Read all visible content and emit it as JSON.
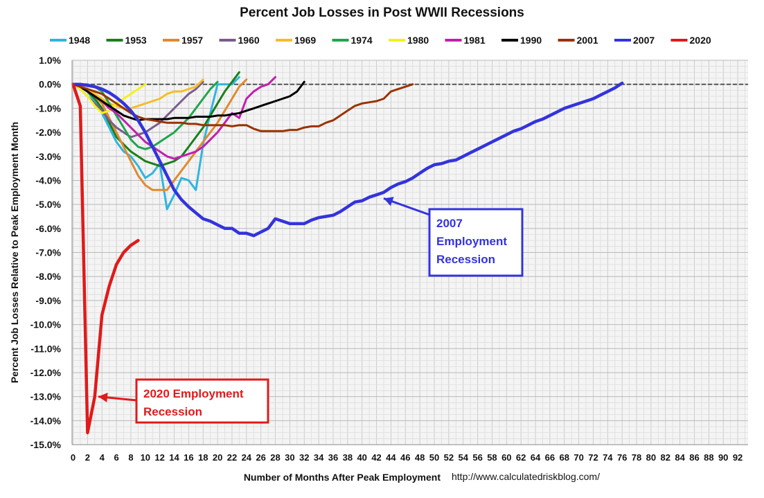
{
  "chart_data": {
    "type": "line",
    "title": "Percent Job Losses in Post WWII Recessions",
    "xlabel": "Number of Months After Peak Employment",
    "ylabel": "Percent Job Losses Relative to Peak Employment Month",
    "source": "http://www.calculatedriskblog.com/",
    "xlim": [
      0,
      93
    ],
    "ylim": [
      -15,
      1
    ],
    "x_ticks": [
      0,
      2,
      4,
      6,
      8,
      10,
      12,
      14,
      16,
      18,
      20,
      22,
      24,
      26,
      28,
      30,
      32,
      34,
      36,
      38,
      40,
      42,
      44,
      46,
      48,
      50,
      52,
      54,
      56,
      58,
      60,
      62,
      64,
      66,
      68,
      70,
      72,
      74,
      76,
      78,
      80,
      82,
      84,
      86,
      88,
      90,
      92
    ],
    "y_ticks": [
      1,
      0,
      -1,
      -2,
      -3,
      -4,
      -5,
      -6,
      -7,
      -8,
      -9,
      -10,
      -11,
      -12,
      -13,
      -14,
      -15
    ],
    "y_tick_labels": [
      "1.0%",
      "0.0%",
      "-1.0%",
      "-2.0%",
      "-3.0%",
      "-4.0%",
      "-5.0%",
      "-6.0%",
      "-7.0%",
      "-8.0%",
      "-9.0%",
      "-10.0%",
      "-11.0%",
      "-12.0%",
      "-13.0%",
      "-14.0%",
      "-15.0%"
    ],
    "grid": true,
    "legend_position": "top",
    "series": [
      {
        "name": "1948",
        "color": "#2EB5E0",
        "width": 3,
        "y": [
          0,
          -0.1,
          -0.3,
          -0.7,
          -1.2,
          -1.8,
          -2.4,
          -2.8,
          -3.0,
          -3.4,
          -3.9,
          -3.7,
          -3.3,
          -5.2,
          -4.6,
          -3.9,
          -4.0,
          -4.4,
          -2.5,
          -1.2,
          0.0,
          0.0,
          0.0,
          0.3
        ]
      },
      {
        "name": "1953",
        "color": "#1A7F1A",
        "width": 3,
        "y": [
          0,
          -0.1,
          -0.3,
          -0.6,
          -1.0,
          -1.6,
          -2.2,
          -2.5,
          -2.8,
          -3.0,
          -3.2,
          -3.3,
          -3.4,
          -3.3,
          -3.2,
          -3.0,
          -2.6,
          -2.2,
          -1.8,
          -1.3,
          -0.8,
          -0.3,
          0.1,
          0.5
        ]
      },
      {
        "name": "1957",
        "color": "#E08A2E",
        "width": 3,
        "y": [
          0,
          -0.1,
          -0.3,
          -0.5,
          -0.8,
          -1.4,
          -2.0,
          -2.6,
          -3.2,
          -3.8,
          -4.2,
          -4.4,
          -4.4,
          -4.4,
          -4.0,
          -3.6,
          -3.2,
          -2.8,
          -2.4,
          -2.0,
          -1.6,
          -1.1,
          -0.6,
          -0.1,
          0.2
        ]
      },
      {
        "name": "1960",
        "color": "#7B5C8E",
        "width": 3,
        "y": [
          0,
          -0.2,
          -0.5,
          -0.8,
          -1.1,
          -1.5,
          -1.8,
          -2.0,
          -2.2,
          -2.1,
          -2.0,
          -1.8,
          -1.6,
          -1.3,
          -1.0,
          -0.7,
          -0.4,
          -0.2,
          0.1
        ]
      },
      {
        "name": "1969",
        "color": "#F5BE27",
        "width": 3,
        "y": [
          0,
          -0.1,
          -0.2,
          -0.4,
          -0.6,
          -0.8,
          -0.9,
          -1.0,
          -1.0,
          -0.9,
          -0.8,
          -0.7,
          -0.6,
          -0.4,
          -0.3,
          -0.3,
          -0.2,
          -0.1,
          0.2
        ]
      },
      {
        "name": "1974",
        "color": "#1EA64E",
        "width": 3,
        "y": [
          0,
          0,
          0,
          -0.1,
          -0.3,
          -0.8,
          -1.3,
          -1.8,
          -2.3,
          -2.6,
          -2.7,
          -2.6,
          -2.4,
          -2.2,
          -2.0,
          -1.7,
          -1.4,
          -1.0,
          -0.6,
          -0.2,
          0.1
        ]
      },
      {
        "name": "1980",
        "color": "#F2F21C",
        "width": 3,
        "y": [
          0,
          -0.2,
          -0.5,
          -0.9,
          -1.2,
          -1.1,
          -0.8,
          -0.6,
          -0.4,
          -0.2,
          0.0
        ]
      },
      {
        "name": "1981",
        "color": "#C21FAE",
        "width": 3,
        "y": [
          0,
          -0.1,
          -0.3,
          -0.5,
          -0.7,
          -1.0,
          -1.2,
          -1.5,
          -1.8,
          -2.1,
          -2.4,
          -2.6,
          -2.8,
          -3.0,
          -3.1,
          -3.0,
          -2.9,
          -2.8,
          -2.6,
          -2.3,
          -2.0,
          -1.6,
          -1.2,
          -1.4,
          -0.6,
          -0.3,
          -0.1,
          0.0,
          0.3
        ]
      },
      {
        "name": "1990",
        "color": "#000000",
        "width": 3,
        "y": [
          0,
          -0.1,
          -0.3,
          -0.5,
          -0.7,
          -0.9,
          -1.1,
          -1.3,
          -1.4,
          -1.5,
          -1.45,
          -1.45,
          -1.45,
          -1.45,
          -1.4,
          -1.4,
          -1.4,
          -1.35,
          -1.35,
          -1.35,
          -1.3,
          -1.3,
          -1.25,
          -1.2,
          -1.1,
          -1.0,
          -0.9,
          -0.8,
          -0.7,
          -0.6,
          -0.5,
          -0.3,
          0.1
        ]
      },
      {
        "name": "2001",
        "color": "#993300",
        "width": 3,
        "y": [
          0,
          -0.1,
          -0.2,
          -0.3,
          -0.4,
          -0.6,
          -0.8,
          -1.0,
          -1.2,
          -1.35,
          -1.45,
          -1.5,
          -1.55,
          -1.6,
          -1.6,
          -1.6,
          -1.65,
          -1.65,
          -1.7,
          -1.7,
          -1.7,
          -1.7,
          -1.75,
          -1.7,
          -1.7,
          -1.85,
          -1.95,
          -1.95,
          -1.95,
          -1.95,
          -1.9,
          -1.9,
          -1.8,
          -1.75,
          -1.75,
          -1.6,
          -1.5,
          -1.3,
          -1.1,
          -0.9,
          -0.8,
          -0.75,
          -0.7,
          -0.6,
          -0.3,
          -0.2,
          -0.1,
          0.0
        ]
      },
      {
        "name": "2007",
        "color": "#3333DD",
        "width": 4.5,
        "y": [
          0,
          0,
          -0.05,
          -0.1,
          -0.2,
          -0.35,
          -0.55,
          -0.8,
          -1.1,
          -1.5,
          -2.0,
          -2.6,
          -3.2,
          -3.8,
          -4.4,
          -4.8,
          -5.1,
          -5.35,
          -5.6,
          -5.7,
          -5.85,
          -6.0,
          -6.0,
          -6.2,
          -6.2,
          -6.3,
          -6.15,
          -6.0,
          -5.6,
          -5.7,
          -5.8,
          -5.8,
          -5.8,
          -5.65,
          -5.55,
          -5.5,
          -5.45,
          -5.3,
          -5.1,
          -4.9,
          -4.85,
          -4.7,
          -4.6,
          -4.5,
          -4.3,
          -4.15,
          -4.05,
          -3.9,
          -3.7,
          -3.5,
          -3.35,
          -3.3,
          -3.2,
          -3.15,
          -3.0,
          -2.85,
          -2.7,
          -2.55,
          -2.4,
          -2.25,
          -2.1,
          -1.95,
          -1.85,
          -1.7,
          -1.55,
          -1.45,
          -1.3,
          -1.15,
          -1.0,
          -0.9,
          -0.8,
          -0.7,
          -0.6,
          -0.45,
          -0.3,
          -0.15,
          0.05
        ]
      },
      {
        "name": "2020",
        "color": "#E01A1A",
        "width": 4.5,
        "y": [
          0,
          -0.9,
          -14.5,
          -13.0,
          -9.6,
          -8.4,
          -7.5,
          -7.0,
          -6.7,
          -6.5
        ]
      }
    ],
    "annotations": [
      {
        "text": "2007 Employment Recession",
        "color": "#3333DD",
        "arrow_to": {
          "x": 43,
          "y": -4.75
        }
      },
      {
        "text": "2020 Employment Recession",
        "color": "#E01A1A",
        "arrow_to": {
          "x": 3.5,
          "y": -13.0
        }
      }
    ]
  },
  "annotation_2007_lines": [
    "2007",
    "Employment",
    "Recession"
  ],
  "annotation_2020_lines": [
    "2020 Employment",
    "Recession"
  ]
}
